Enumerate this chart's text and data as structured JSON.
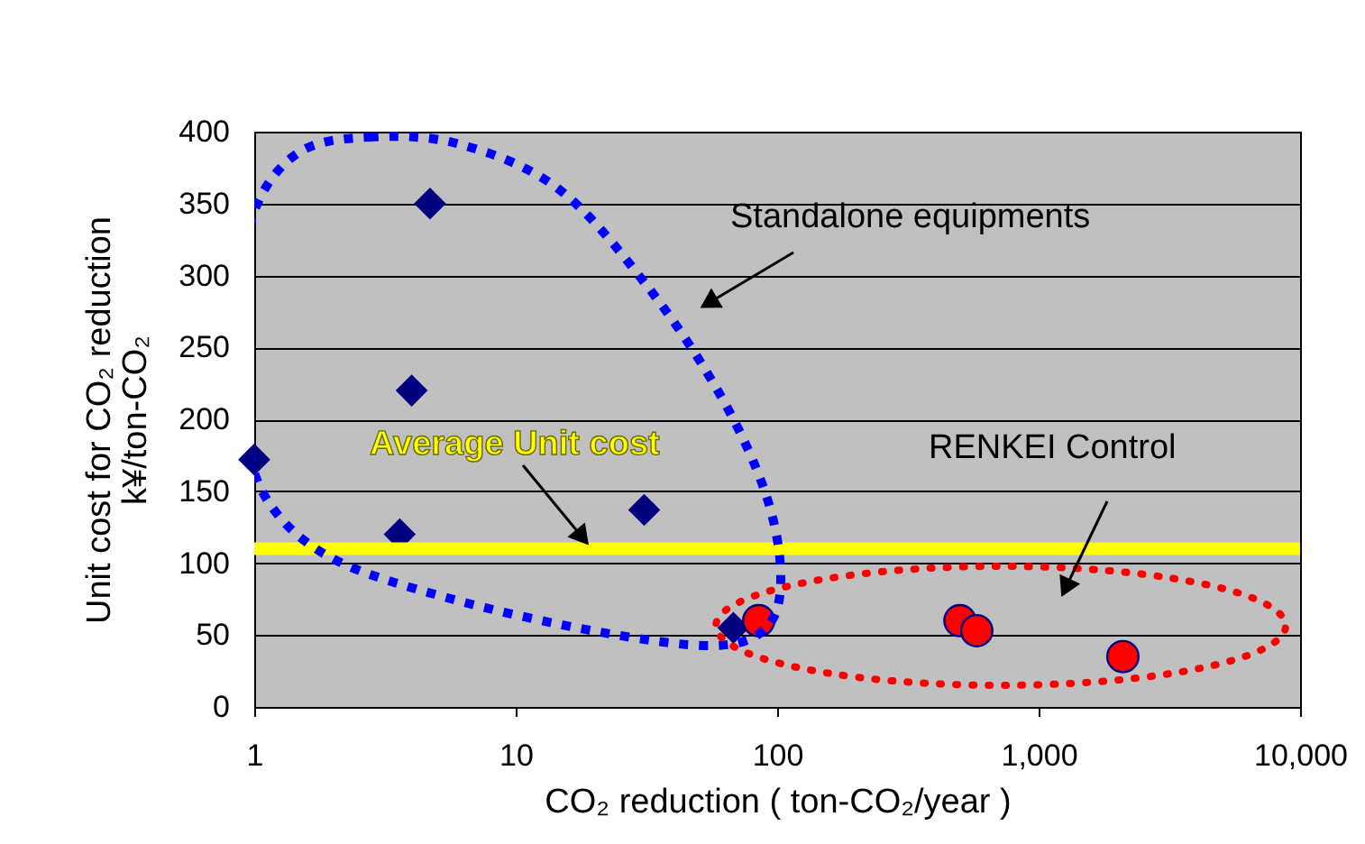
{
  "chart_data": {
    "type": "scatter",
    "xlabel": "CO₂ reduction ( ton-CO₂/year )",
    "ylabel": "Unit cost for CO₂ reduction\nk¥/ton-CO₂",
    "series": [
      {
        "color": "#000080",
        "marker": "diamond",
        "x": [
          1,
          4.7,
          4,
          3.6,
          31,
          68
        ],
        "values": [
          172,
          350,
          220,
          120,
          137,
          55
        ]
      },
      {
        "color": "#ff0000",
        "marker": "circle",
        "x": [
          85,
          500,
          580,
          2100
        ],
        "values": [
          60,
          60,
          53,
          35
        ]
      }
    ],
    "log": "x",
    "xlim": [
      1,
      10000
    ],
    "xticks": [
      1,
      10,
      100,
      {
        "value": 1000,
        "label": "1,000"
      },
      {
        "value": 10000,
        "label": "10,000"
      }
    ],
    "ylim": [
      0,
      400
    ],
    "yticks": [
      0,
      50,
      100,
      150,
      200,
      250,
      300,
      350,
      400
    ],
    "grid": "y",
    "ref_lines": [
      {
        "axis": "y",
        "value": 110,
        "label": "Average Unit cost",
        "color": "#ffff00"
      }
    ],
    "annotations": [
      "Standalone equipments",
      "RENKEI Control"
    ]
  }
}
